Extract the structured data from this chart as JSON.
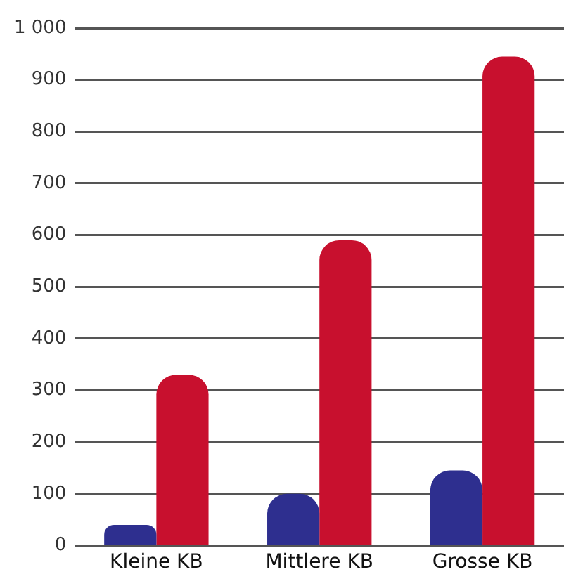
{
  "chart_data": {
    "type": "bar",
    "categories": [
      "Kleine KB",
      "Mittlere KB",
      "Grosse KB"
    ],
    "series": [
      {
        "color": "#2e2f8f",
        "values": [
          40,
          100,
          145
        ]
      },
      {
        "color": "#c8102e",
        "values": [
          330,
          590,
          945
        ]
      }
    ],
    "ylim": [
      0,
      1000
    ],
    "yticks": [
      0,
      100,
      200,
      300,
      400,
      500,
      600,
      700,
      800,
      900,
      {
        "value": 1000,
        "label": "1 000"
      }
    ],
    "grid": "y",
    "legend": false
  }
}
